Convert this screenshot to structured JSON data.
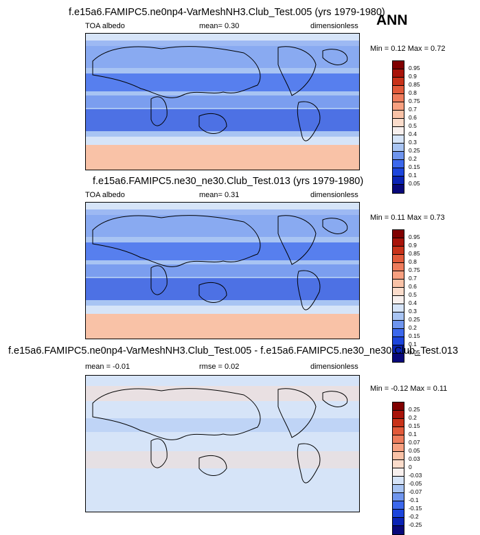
{
  "season": "ANN",
  "colors": {
    "abs": [
      "#08087a",
      "#0a23b4",
      "#1c45dc",
      "#3c68ec",
      "#6f95ee",
      "#a8c4f3",
      "#d6e4f8",
      "#f8f0ee",
      "#fbdccb",
      "#f9c2a7",
      "#f7a080",
      "#ee7c5c",
      "#e25a3a",
      "#c83219",
      "#a81309",
      "#800000"
    ],
    "diff": [
      "#08087a",
      "#0a23b4",
      "#1c45dc",
      "#3c68ec",
      "#6f95ee",
      "#a8c4f3",
      "#d6e4f8",
      "#f8f0ee",
      "#fbdccb",
      "#f9c2a7",
      "#f7a080",
      "#ee7c5c",
      "#e25a3a",
      "#c83219",
      "#a81309",
      "#800000"
    ]
  },
  "panels": [
    {
      "title": "f.e15a6.FAMIPC5.ne0np4-VarMeshNH3.Club_Test.005 (yrs 1979-1980)",
      "left": "TOA albedo",
      "center": "mean=   0.30",
      "right": "dimensionless",
      "minmax": "Min =   0.12  Max =   0.72",
      "colorbar": "abs"
    },
    {
      "title": "f.e15a6.FAMIPC5.ne30_ne30.Club_Test.013 (yrs 1979-1980)",
      "left": "TOA albedo",
      "center": "mean=   0.31",
      "right": "dimensionless",
      "minmax": "Min =   0.11  Max =   0.73",
      "colorbar": "abs"
    },
    {
      "title": "f.e15a6.FAMIPC5.ne0np4-VarMeshNH3.Club_Test.005 - f.e15a6.FAMIPC5.ne30_ne30.Club_Test.013",
      "left": "mean = -0.01",
      "center": "rmse =   0.02",
      "right": "dimensionless",
      "minmax": "Min =  -0.12  Max =   0.11",
      "colorbar": "diff"
    }
  ],
  "chart_data": [
    {
      "type": "heatmap",
      "title": "f.e15a6.FAMIPC5.ne0np4-VarMeshNH3.Club_Test.005 (yrs 1979-1980)",
      "variable": "TOA albedo",
      "units": "dimensionless",
      "mean": 0.3,
      "min": 0.12,
      "max": 0.72,
      "colorbar_levels": [
        "0.95",
        "0.9",
        "0.85",
        "0.8",
        "0.75",
        "0.7",
        "0.6",
        "0.5",
        "0.4",
        "0.3",
        "0.25",
        "0.2",
        "0.15",
        "0.1",
        "0.05"
      ]
    },
    {
      "type": "heatmap",
      "title": "f.e15a6.FAMIPC5.ne30_ne30.Club_Test.013 (yrs 1979-1980)",
      "variable": "TOA albedo",
      "units": "dimensionless",
      "mean": 0.31,
      "min": 0.11,
      "max": 0.73,
      "colorbar_levels": [
        "0.95",
        "0.9",
        "0.85",
        "0.8",
        "0.75",
        "0.7",
        "0.6",
        "0.5",
        "0.4",
        "0.3",
        "0.25",
        "0.2",
        "0.15",
        "0.1",
        "0.05"
      ]
    },
    {
      "type": "heatmap",
      "title": "f.e15a6.FAMIPC5.ne0np4-VarMeshNH3.Club_Test.005 - f.e15a6.FAMIPC5.ne30_ne30.Club_Test.013",
      "units": "dimensionless",
      "mean": -0.01,
      "rmse": 0.02,
      "min": -0.12,
      "max": 0.11,
      "colorbar_levels": [
        "0.25",
        "0.2",
        "0.15",
        "0.1",
        "0.07",
        "0.05",
        "0.03",
        "0",
        "-0.03",
        "-0.05",
        "-0.07",
        "-0.1",
        "-0.15",
        "-0.2",
        "-0.25"
      ]
    }
  ]
}
